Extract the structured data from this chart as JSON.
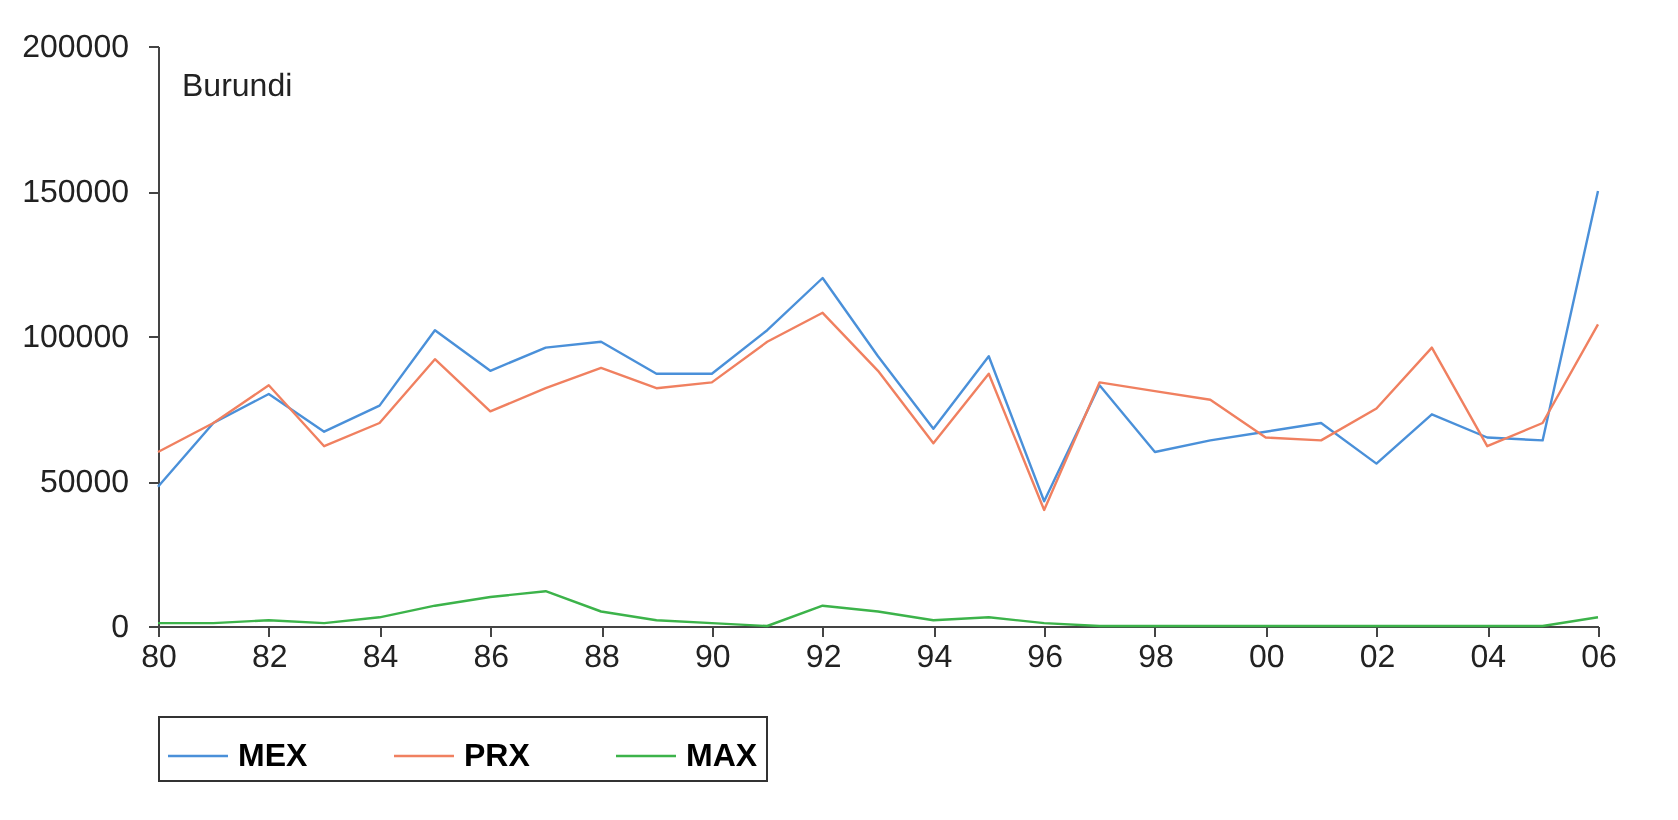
{
  "chart_data": {
    "type": "line",
    "title": "Burundi",
    "x": [
      1980,
      1981,
      1982,
      1983,
      1984,
      1985,
      1986,
      1987,
      1988,
      1989,
      1990,
      1991,
      1992,
      1993,
      1994,
      1995,
      1996,
      1997,
      1998,
      1999,
      2000,
      2001,
      2002,
      2003,
      2004,
      2005,
      2006
    ],
    "series": [
      {
        "name": "MEX",
        "color": "#4a90d9",
        "values": [
          48000,
          70000,
          80000,
          67000,
          76000,
          102000,
          88000,
          96000,
          98000,
          87000,
          87000,
          102000,
          120000,
          93000,
          68000,
          93000,
          43000,
          83000,
          60000,
          64000,
          67000,
          70000,
          56000,
          73000,
          65000,
          64000,
          150000
        ]
      },
      {
        "name": "PRX",
        "color": "#f08060",
        "values": [
          60000,
          70000,
          83000,
          62000,
          70000,
          92000,
          74000,
          82000,
          89000,
          82000,
          84000,
          98000,
          108000,
          88000,
          63000,
          87000,
          40000,
          84000,
          81000,
          78000,
          65000,
          64000,
          75000,
          96000,
          62000,
          70000,
          104000
        ]
      },
      {
        "name": "MAX",
        "color": "#3cb34a",
        "values": [
          1000,
          1000,
          2000,
          1000,
          3000,
          7000,
          10000,
          12000,
          5000,
          2000,
          1000,
          0,
          7000,
          5000,
          2000,
          3000,
          1000,
          0,
          0,
          0,
          0,
          0,
          0,
          0,
          0,
          0,
          3000
        ]
      }
    ],
    "xlim": [
      1980,
      2006
    ],
    "xticks": [
      {
        "value": 1980,
        "label": "80"
      },
      {
        "value": 1982,
        "label": "82"
      },
      {
        "value": 1984,
        "label": "84"
      },
      {
        "value": 1986,
        "label": "86"
      },
      {
        "value": 1988,
        "label": "88"
      },
      {
        "value": 1990,
        "label": "90"
      },
      {
        "value": 1992,
        "label": "92"
      },
      {
        "value": 1994,
        "label": "94"
      },
      {
        "value": 1996,
        "label": "96"
      },
      {
        "value": 1998,
        "label": "98"
      },
      {
        "value": 2000,
        "label": "00"
      },
      {
        "value": 2002,
        "label": "02"
      },
      {
        "value": 2004,
        "label": "04"
      },
      {
        "value": 2006,
        "label": "06"
      }
    ],
    "ylim": [
      0,
      200000
    ],
    "yticks": [
      0,
      50000,
      100000,
      150000,
      200000
    ],
    "legend": "bottom",
    "grid": false,
    "marker": "none",
    "line_style": "solid"
  }
}
